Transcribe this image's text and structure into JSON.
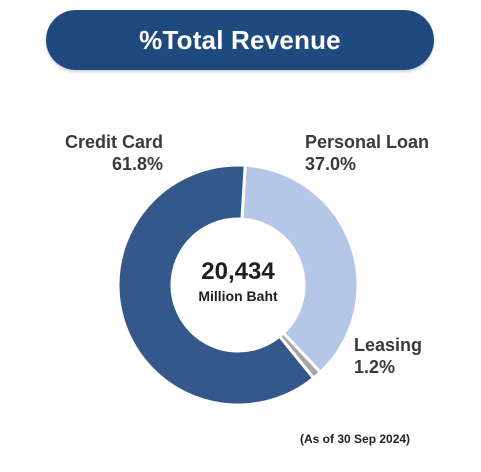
{
  "header": {
    "title": "%Total Revenue"
  },
  "chart_data": {
    "type": "pie",
    "variant": "donut",
    "title": "%Total Revenue",
    "center": {
      "value": "20,434",
      "unit": "Million Baht"
    },
    "slices": [
      {
        "name": "Personal Loan",
        "percent_label": "37.0%",
        "value": 37.0,
        "color": "#b5c7e7"
      },
      {
        "name": "Leasing",
        "percent_label": "1.2%",
        "value": 1.2,
        "color": "#a6a6a6"
      },
      {
        "name": "Credit Card",
        "percent_label": "61.8%",
        "value": 61.8,
        "color": "#34588c"
      }
    ]
  },
  "footnote": "(As of 30 Sep 2024)"
}
